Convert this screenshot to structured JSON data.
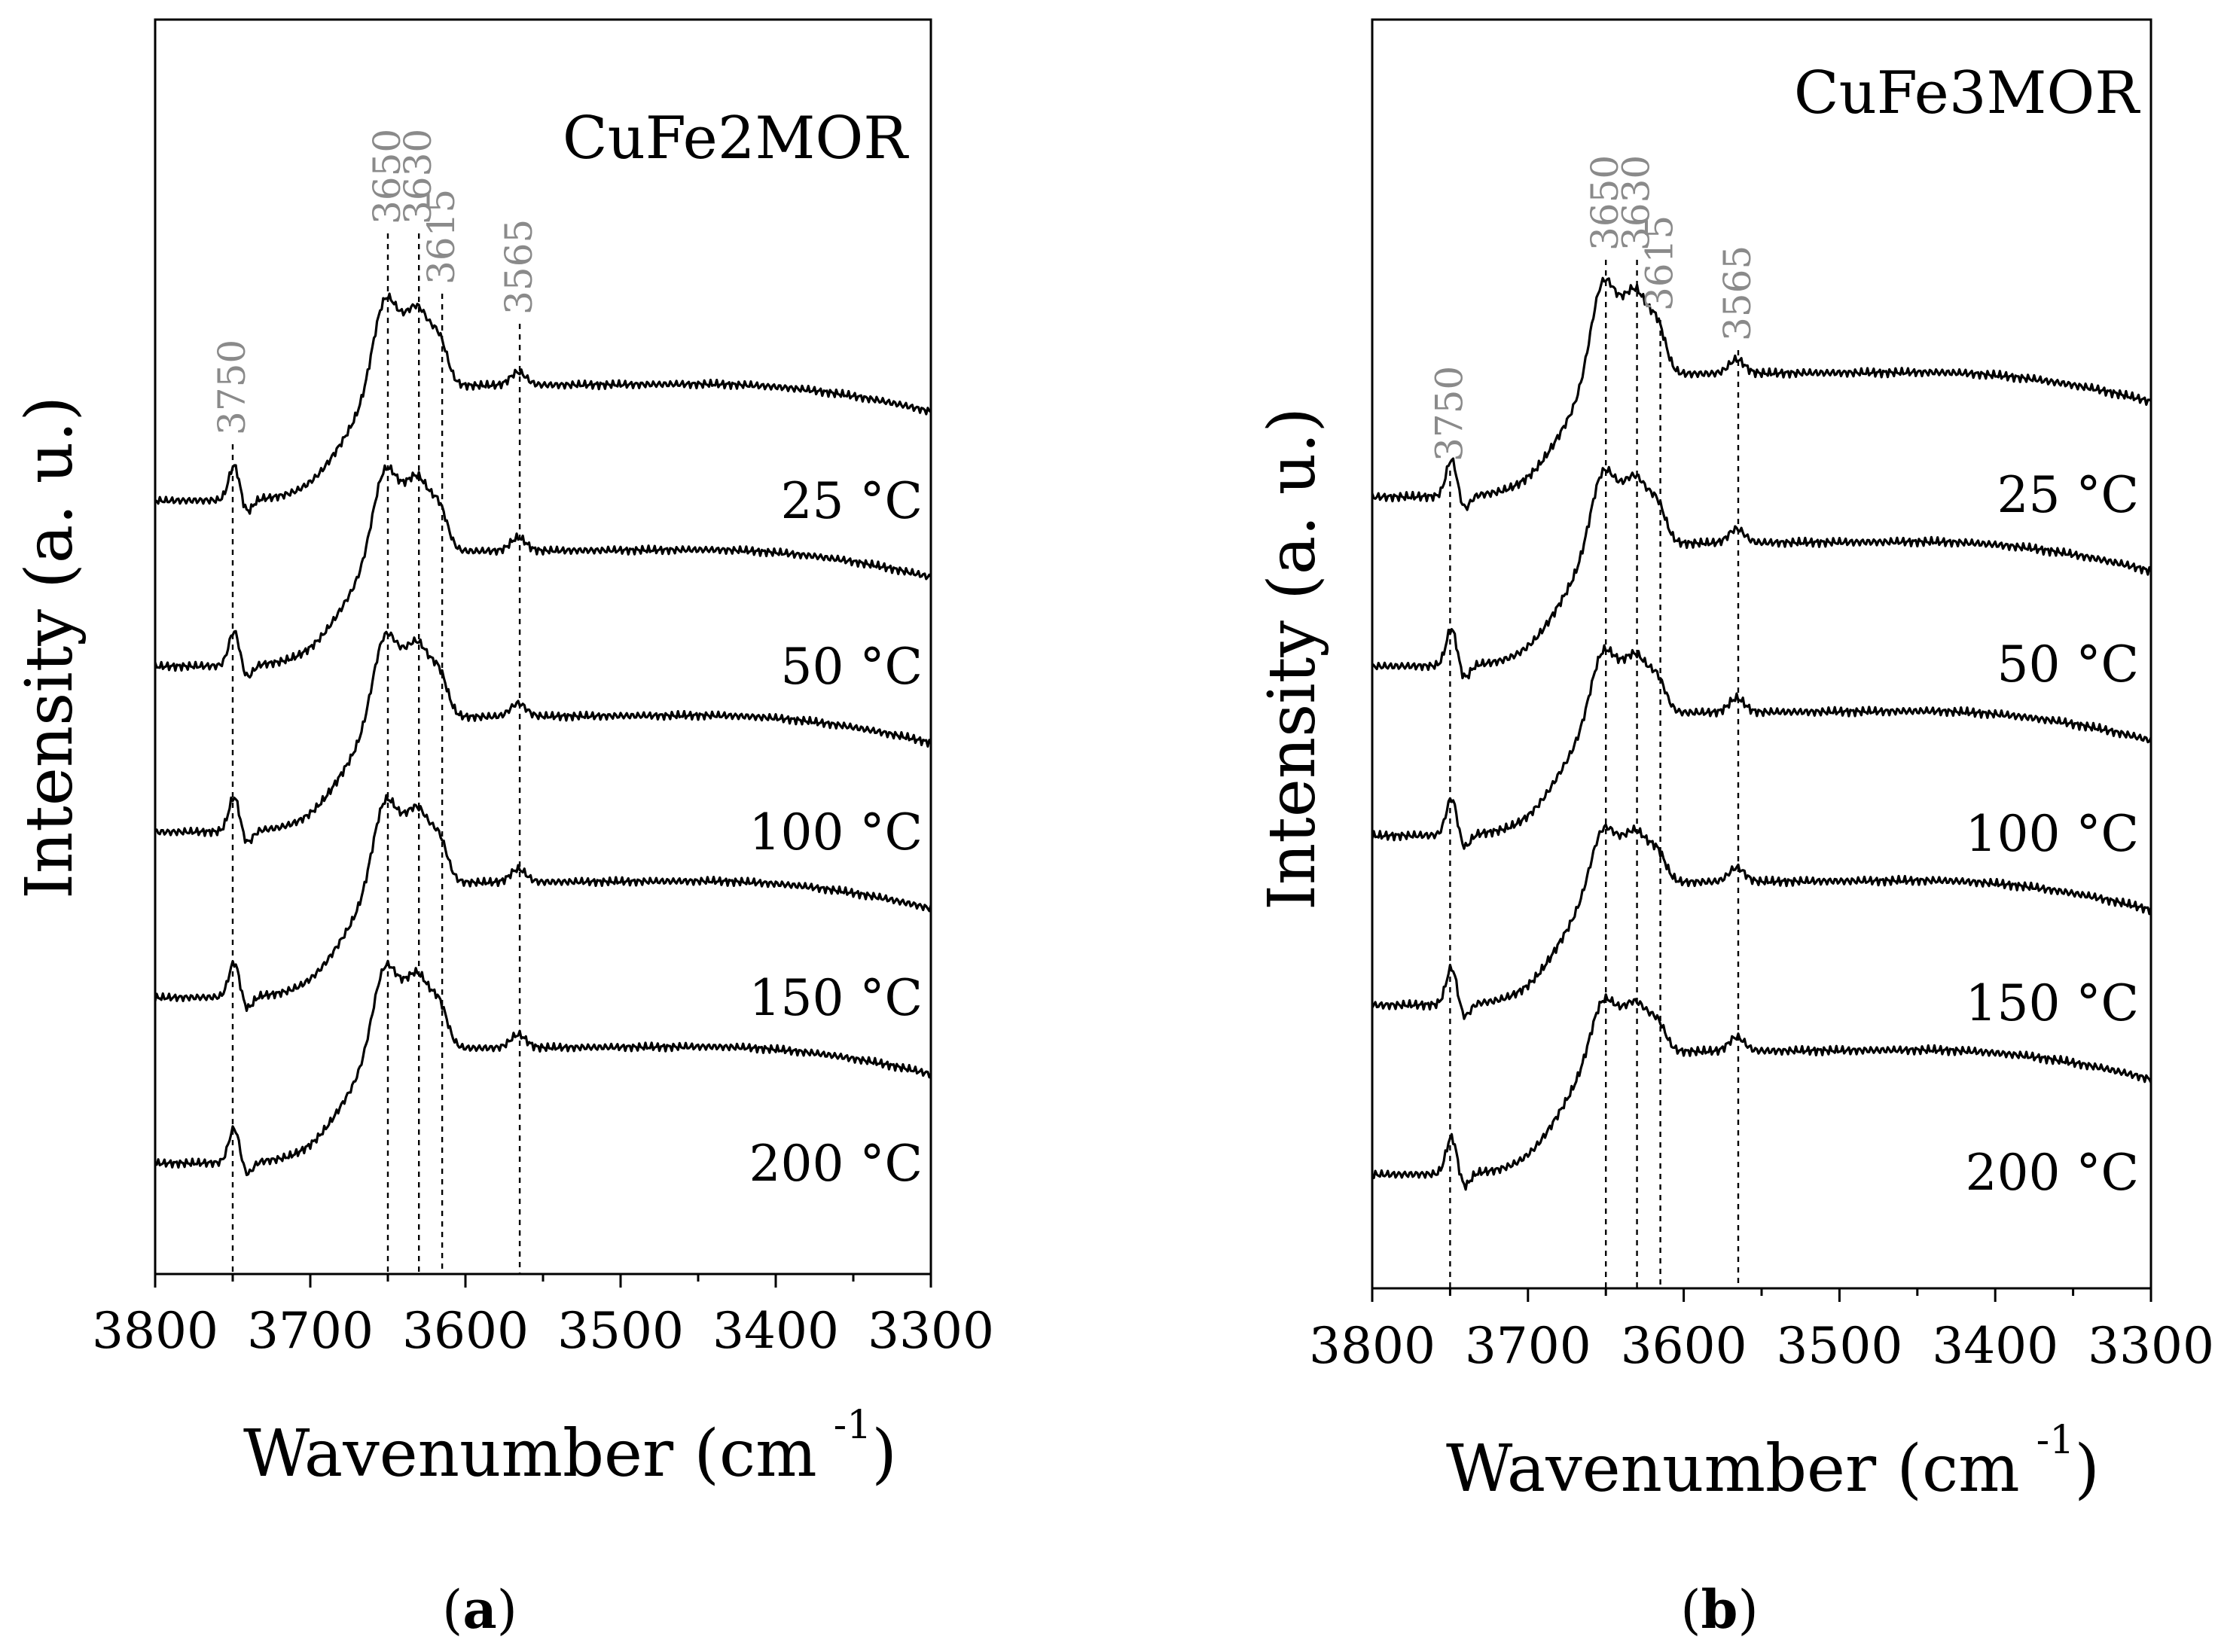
{
  "chart_data": [
    {
      "panel": "a",
      "panel_label_text": "a",
      "type": "line",
      "title": "CuFe2MOR",
      "xlabel": "Wavenumber (cm",
      "xlabel_exponent": "-1",
      "xlabel_close": ")",
      "ylabel": "Intensity (a. u.)",
      "xlim": [
        3800,
        3300
      ],
      "x_ticks": [
        "3800",
        "3700",
        "3600",
        "3500",
        "3400",
        "3300"
      ],
      "peaks": [
        "3750",
        "3650",
        "3630",
        "3615",
        "3565"
      ],
      "peak_positions": [
        3750,
        3650,
        3630,
        3615,
        3565
      ],
      "series": [
        {
          "name": "25 °C",
          "offset": 0.0,
          "scale": 1.0
        },
        {
          "name": "50 °C",
          "offset": 1.0,
          "scale": 0.95
        },
        {
          "name": "100 °C",
          "offset": 2.0,
          "scale": 0.95
        },
        {
          "name": "150 °C",
          "offset": 3.0,
          "scale": 0.95
        },
        {
          "name": "200 °C",
          "offset": 4.0,
          "scale": 0.95
        }
      ]
    },
    {
      "panel": "b",
      "panel_label_text": "b",
      "type": "line",
      "title": "CuFe3MOR",
      "xlabel": "Wavenumber (cm",
      "xlabel_exponent": "-1",
      "xlabel_close": ")",
      "ylabel": "Intensity (a. u.)",
      "xlim": [
        3800,
        3300
      ],
      "x_ticks": [
        "3800",
        "3700",
        "3600",
        "3500",
        "3400",
        "3300"
      ],
      "peaks": [
        "3750",
        "3650",
        "3630",
        "3615",
        "3565"
      ],
      "peak_positions": [
        3750,
        3650,
        3630,
        3615,
        3565
      ],
      "series": [
        {
          "name": "25 °C",
          "offset": 0.0,
          "scale": 1.0
        },
        {
          "name": "50 °C",
          "offset": 1.0,
          "scale": 0.8
        },
        {
          "name": "100 °C",
          "offset": 2.0,
          "scale": 0.7
        },
        {
          "name": "150 °C",
          "offset": 3.0,
          "scale": 0.62
        },
        {
          "name": "200 °C",
          "offset": 4.0,
          "scale": 0.6
        }
      ]
    }
  ]
}
